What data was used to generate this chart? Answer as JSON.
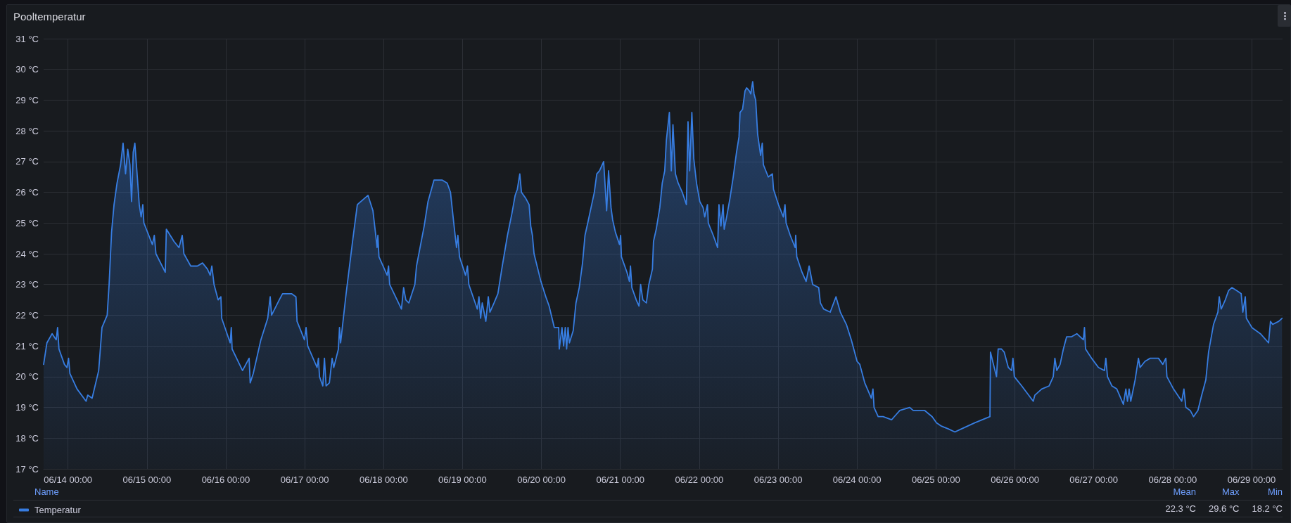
{
  "chart_data": {
    "type": "area",
    "title": "Pooltemperatur",
    "x": [
      "--06-13T16:35",
      "--06-13T17:35",
      "--06-13T19:10",
      "--06-13T20:25",
      "--06-13T20:50",
      "--06-13T21:15",
      "--06-13T22:55",
      "--06-13T23:40",
      "--06-14T00:10",
      "--06-14T00:35",
      "--06-14T02:45",
      "--06-14T05:30",
      "--06-14T06:00",
      "--06-14T07:20",
      "--06-14T09:20",
      "--06-14T10:20",
      "--06-14T11:55",
      "--06-14T12:30",
      "--06-14T13:15",
      "--06-14T14:00",
      "--06-14T14:55",
      "--06-14T16:00",
      "--06-14T16:45",
      "--06-14T17:30",
      "--06-14T18:10",
      "--06-14T18:50",
      "--06-14T19:20",
      "--06-14T19:50",
      "--06-14T20:20",
      "--06-14T21:05",
      "--06-14T21:40",
      "--06-14T22:15",
      "--06-14T22:45",
      "--06-14T23:05",
      "--06-15T01:40",
      "--06-15T02:15",
      "--06-15T02:45",
      "--06-15T05:35",
      "--06-15T05:55",
      "--06-15T08:15",
      "--06-15T09:45",
      "--06-15T10:45",
      "--06-15T11:15",
      "--06-15T13:20",
      "--06-15T15:20",
      "--06-15T16:55",
      "--06-15T18:25",
      "--06-15T19:15",
      "--06-15T19:45",
      "--06-15T20:25",
      "--06-15T21:40",
      "--06-15T22:30",
      "--06-15T22:45",
      "--06-16T01:20",
      "--06-16T01:40",
      "--06-16T01:55",
      "--06-16T05:05",
      "--06-16T07:05",
      "--06-16T07:25",
      "--06-16T08:20",
      "--06-16T10:40",
      "--06-16T12:45",
      "--06-16T13:30",
      "--06-16T13:55",
      "--06-16T16:15",
      "--06-16T17:15",
      "--06-16T20:00",
      "--06-16T21:20",
      "--06-16T21:40",
      "--06-16T23:55",
      "--06-17T00:25",
      "--06-17T00:55",
      "--06-17T03:45",
      "--06-17T04:10",
      "--06-17T04:30",
      "--06-17T05:30",
      "--06-17T06:00",
      "--06-17T06:30",
      "--06-17T07:30",
      "--06-17T08:20",
      "--06-17T08:50",
      "--06-17T10:15",
      "--06-17T10:35",
      "--06-17T10:55",
      "--06-17T12:35",
      "--06-17T14:40",
      "--06-17T16:00",
      "--06-17T19:15",
      "--06-17T20:45",
      "--06-17T21:30",
      "--06-17T22:00",
      "--06-17T22:15",
      "--06-17T22:35",
      "--06-18T01:05",
      "--06-18T01:30",
      "--06-18T01:50",
      "--06-18T05:25",
      "--06-18T06:05",
      "--06-18T06:45",
      "--06-18T07:40",
      "--06-18T09:30",
      "--06-18T10:00",
      "--06-18T12:20",
      "--06-18T13:30",
      "--06-18T15:20",
      "--06-18T17:45",
      "--06-18T19:20",
      "--06-18T20:20",
      "--06-18T21:20",
      "--06-18T22:10",
      "--06-18T22:35",
      "--06-18T23:05",
      "--06-19T00:55",
      "--06-19T01:30",
      "--06-19T01:55",
      "--06-19T04:30",
      "--06-19T05:00",
      "--06-19T05:30",
      "--06-19T06:00",
      "--06-19T07:05",
      "--06-19T07:50",
      "--06-19T08:20",
      "--06-19T09:35",
      "--06-19T10:45",
      "--06-19T12:05",
      "--06-19T13:40",
      "--06-19T15:00",
      "--06-19T16:00",
      "--06-19T16:40",
      "--06-19T17:25",
      "--06-19T17:55",
      "--06-19T19:15",
      "--06-19T20:15",
      "--06-19T20:45",
      "--06-19T21:15",
      "--06-19T21:45",
      "--06-19T23:50",
      "--06-20T01:20",
      "--06-20T02:20",
      "--06-20T03:55",
      "--06-20T05:15",
      "--06-20T05:25",
      "--06-20T06:15",
      "--06-20T06:45",
      "--06-20T07:15",
      "--06-20T07:40",
      "--06-20T08:05",
      "--06-20T08:30",
      "--06-20T09:40",
      "--06-20T10:30",
      "--06-20T11:30",
      "--06-20T12:30",
      "--06-20T13:15",
      "--06-20T14:05",
      "--06-20T15:05",
      "--06-20T16:05",
      "--06-20T16:50",
      "--06-20T17:40",
      "--06-20T18:55",
      "--06-20T19:40",
      "--06-20T19:50",
      "--06-20T20:25",
      "--06-20T21:10",
      "--06-20T21:40",
      "--06-20T22:30",
      "--06-20T23:45",
      "--06-21T00:05",
      "--06-21T00:20",
      "--06-21T02:00",
      "--06-21T02:45",
      "--06-21T03:05",
      "--06-21T03:30",
      "--06-21T04:50",
      "--06-21T05:40",
      "--06-21T06:10",
      "--06-21T06:50",
      "--06-21T07:55",
      "--06-21T08:40",
      "--06-21T09:45",
      "--06-21T10:05",
      "--06-21T10:55",
      "--06-21T12:00",
      "--06-21T12:45",
      "--06-21T13:30",
      "--06-21T14:00",
      "--06-21T14:55",
      "--06-21T15:30",
      "--06-21T16:00",
      "--06-21T16:45",
      "--06-21T17:35",
      "--06-21T18:50",
      "--06-21T20:05",
      "--06-21T20:35",
      "--06-21T21:05",
      "--06-21T21:45",
      "--06-21T22:20",
      "--06-21T23:10",
      "--06-22T00:10",
      "--06-22T01:10",
      "--06-22T01:40",
      "--06-22T02:30",
      "--06-22T02:45",
      "--06-22T04:15",
      "--06-22T05:35",
      "--06-22T06:00",
      "--06-22T06:35",
      "--06-22T07:15",
      "--06-22T07:35",
      "--06-22T08:20",
      "--06-22T09:20",
      "--06-22T10:20",
      "--06-22T11:20",
      "--06-22T12:05",
      "--06-22T12:25",
      "--06-22T13:10",
      "--06-22T13:55",
      "--06-22T14:25",
      "--06-22T15:15",
      "--06-22T15:40",
      "--06-22T16:15",
      "--06-22T16:40",
      "--06-22T17:10",
      "--06-22T17:45",
      "--06-22T18:40",
      "--06-22T19:10",
      "--06-22T19:30",
      "--06-22T21:00",
      "--06-22T22:15",
      "--06-22T22:35",
      "--06-23T00:05",
      "--06-23T01:35",
      "--06-23T02:05",
      "--06-23T02:25",
      "--06-23T03:40",
      "--06-23T05:10",
      "--06-23T05:20",
      "--06-23T05:40",
      "--06-23T07:15",
      "--06-23T08:30",
      "--06-23T09:25",
      "--06-23T10:30",
      "--06-23T12:20",
      "--06-23T12:50",
      "--06-23T13:50",
      "--06-23T15:50",
      "--06-23T17:35",
      "--06-23T18:55",
      "--06-23T20:45",
      "--06-23T22:15",
      "--06-24T00:00",
      "--06-24T00:50",
      "--06-24T02:20",
      "--06-24T04:20",
      "--06-24T04:50",
      "--06-24T05:10",
      "--06-24T06:25",
      "--06-24T07:55",
      "--06-24T10:30",
      "--06-24T13:00",
      "--06-24T16:00",
      "--06-24T17:05",
      "--06-24T20:35",
      "--06-24T22:50",
      "--06-25T00:10",
      "--06-25T01:30",
      "--06-25T03:45",
      "--06-25T05:45",
      "--06-25T07:45",
      "--06-25T11:50",
      "--06-25T16:25",
      "--06-25T16:35",
      "--06-25T17:15",
      "--06-25T18:25",
      "--06-25T18:55",
      "--06-25T19:55",
      "--06-25T20:45",
      "--06-25T22:00",
      "--06-25T23:00",
      "--06-25T23:25",
      "--06-25T23:50",
      "--06-26T02:05",
      "--06-26T05:35",
      "--06-26T06:05",
      "--06-26T08:10",
      "--06-26T10:25",
      "--06-26T11:40",
      "--06-26T12:10",
      "--06-26T12:45",
      "--06-26T13:45",
      "--06-26T14:45",
      "--06-26T15:45",
      "--06-26T17:15",
      "--06-26T18:50",
      "--06-26T20:50",
      "--06-26T21:10",
      "--06-26T21:30",
      "--06-26T23:20",
      "--06-27T01:25",
      "--06-27T03:15",
      "--06-27T03:40",
      "--06-27T04:10",
      "--06-27T05:30",
      "--06-27T07:00",
      "--06-27T09:00",
      "--06-27T09:45",
      "--06-27T10:15",
      "--06-27T10:45",
      "--06-27T11:15",
      "--06-27T12:35",
      "--06-27T13:35",
      "--06-27T14:05",
      "--06-27T15:35",
      "--06-27T17:10",
      "--06-27T19:40",
      "--06-27T21:00",
      "--06-27T21:55",
      "--06-27T22:15",
      "--06-28T00:15",
      "--06-28T02:45",
      "--06-28T03:25",
      "--06-28T04:00",
      "--06-28T05:20",
      "--06-28T06:20",
      "--06-28T07:40",
      "--06-28T08:50",
      "--06-28T10:05",
      "--06-28T10:55",
      "--06-28T12:25",
      "--06-28T13:45",
      "--06-28T14:10",
      "--06-28T14:45",
      "--06-28T16:00",
      "--06-28T17:00",
      "--06-28T18:00",
      "--06-28T19:30",
      "--06-28T20:50",
      "--06-28T21:20",
      "--06-28T22:05",
      "--06-28T22:25",
      "--06-29T00:05",
      "--06-29T02:40",
      "--06-29T05:10",
      "--06-29T05:45",
      "--06-29T06:25",
      "--06-29T08:15",
      "--06-29T09:15"
    ],
    "series": [
      {
        "name": "Temperatur",
        "color": "#377de1",
        "values": [
          20.4,
          21.1,
          21.4,
          21.2,
          21.6,
          20.9,
          20.4,
          20.3,
          20.6,
          20.1,
          19.6,
          19.2,
          19.4,
          19.3,
          20.2,
          21.6,
          22.0,
          23.0,
          24.7,
          25.6,
          26.3,
          26.9,
          27.6,
          26.6,
          27.4,
          26.9,
          25.7,
          27.3,
          27.6,
          26.5,
          25.6,
          25.2,
          25.6,
          25.0,
          24.3,
          24.6,
          24.0,
          23.4,
          24.8,
          24.4,
          24.2,
          24.6,
          24.0,
          23.6,
          23.6,
          23.7,
          23.5,
          23.3,
          23.6,
          23.0,
          22.5,
          22.6,
          21.9,
          21.1,
          21.6,
          20.9,
          20.2,
          20.6,
          19.8,
          20.1,
          21.2,
          21.9,
          22.6,
          22.0,
          22.5,
          22.7,
          22.7,
          22.6,
          21.8,
          21.2,
          21.6,
          21.0,
          20.3,
          20.6,
          20.0,
          19.7,
          20.6,
          19.7,
          19.8,
          20.6,
          20.3,
          20.9,
          21.6,
          21.1,
          22.7,
          24.5,
          25.6,
          25.9,
          25.4,
          24.7,
          24.2,
          24.6,
          23.9,
          23.3,
          23.6,
          23.0,
          22.2,
          22.9,
          22.5,
          22.4,
          23.0,
          23.6,
          24.9,
          25.7,
          26.4,
          26.4,
          26.3,
          26.0,
          25.0,
          24.2,
          24.6,
          23.9,
          23.3,
          23.6,
          23.0,
          22.2,
          22.6,
          21.9,
          22.4,
          21.8,
          22.6,
          22.1,
          22.4,
          22.7,
          23.6,
          24.6,
          25.3,
          25.9,
          26.1,
          26.6,
          26.0,
          25.8,
          25.6,
          24.9,
          24.6,
          24.0,
          23.1,
          22.6,
          22.3,
          21.6,
          21.6,
          20.9,
          21.6,
          21.0,
          21.6,
          20.9,
          21.6,
          21.1,
          21.5,
          22.4,
          22.9,
          23.7,
          24.6,
          25.0,
          25.5,
          26.0,
          26.6,
          26.7,
          27.0,
          25.7,
          25.4,
          26.7,
          25.5,
          25.1,
          24.7,
          24.3,
          24.6,
          23.9,
          23.4,
          23.1,
          23.6,
          22.9,
          22.5,
          22.3,
          23.0,
          22.5,
          22.4,
          23.0,
          23.5,
          24.4,
          24.8,
          25.5,
          26.3,
          26.7,
          27.7,
          28.6,
          26.7,
          28.2,
          26.6,
          26.3,
          26.0,
          25.6,
          28.3,
          26.7,
          28.6,
          27.1,
          26.3,
          25.7,
          25.5,
          25.2,
          25.6,
          25.0,
          24.6,
          24.2,
          25.6,
          24.9,
          25.6,
          24.8,
          25.2,
          25.8,
          26.5,
          27.3,
          27.8,
          28.6,
          28.7,
          29.3,
          29.4,
          29.3,
          29.2,
          29.6,
          29.2,
          29.0,
          27.9,
          27.2,
          27.6,
          26.9,
          26.5,
          26.6,
          26.1,
          25.6,
          25.2,
          25.6,
          25.0,
          24.6,
          24.2,
          24.6,
          23.9,
          23.4,
          23.1,
          23.6,
          23.0,
          22.9,
          22.4,
          22.2,
          22.1,
          22.6,
          22.1,
          21.7,
          21.2,
          20.5,
          20.4,
          19.8,
          19.3,
          19.6,
          19.0,
          18.7,
          18.7,
          18.6,
          18.9,
          19.0,
          18.9,
          18.9,
          18.7,
          18.5,
          18.4,
          18.3,
          18.2,
          18.3,
          18.5,
          18.7,
          20.8,
          20.5,
          20.0,
          20.9,
          20.9,
          20.8,
          20.3,
          20.2,
          20.6,
          20.0,
          19.7,
          19.2,
          19.4,
          19.6,
          19.7,
          20.0,
          20.6,
          20.2,
          20.4,
          20.9,
          21.3,
          21.3,
          21.4,
          21.2,
          21.6,
          20.9,
          20.6,
          20.3,
          20.2,
          20.6,
          20.0,
          19.7,
          19.6,
          19.1,
          19.6,
          19.2,
          19.6,
          19.2,
          19.9,
          20.6,
          20.3,
          20.5,
          20.6,
          20.6,
          20.4,
          20.6,
          20.0,
          19.6,
          19.2,
          19.6,
          19.0,
          18.9,
          18.7,
          18.9,
          19.4,
          19.9,
          20.8,
          21.7,
          22.1,
          22.6,
          22.2,
          22.5,
          22.8,
          22.9,
          22.8,
          22.7,
          22.1,
          22.6,
          21.9,
          21.6,
          21.4,
          21.1,
          21.8,
          21.7,
          21.8,
          21.9
        ]
      }
    ],
    "xlim": [
      "--06-13T16:35",
      "--06-29T09:25"
    ],
    "xticks": [
      {
        "value": "--06-14T00:00",
        "label": "06/14 00:00"
      },
      {
        "value": "--06-15T00:00",
        "label": "06/15 00:00"
      },
      {
        "value": "--06-16T00:00",
        "label": "06/16 00:00"
      },
      {
        "value": "--06-17T00:00",
        "label": "06/17 00:00"
      },
      {
        "value": "--06-18T00:00",
        "label": "06/18 00:00"
      },
      {
        "value": "--06-19T00:00",
        "label": "06/19 00:00"
      },
      {
        "value": "--06-20T00:00",
        "label": "06/20 00:00"
      },
      {
        "value": "--06-21T00:00",
        "label": "06/21 00:00"
      },
      {
        "value": "--06-22T00:00",
        "label": "06/22 00:00"
      },
      {
        "value": "--06-23T00:00",
        "label": "06/23 00:00"
      },
      {
        "value": "--06-24T00:00",
        "label": "06/24 00:00"
      },
      {
        "value": "--06-25T00:00",
        "label": "06/25 00:00"
      },
      {
        "value": "--06-26T00:00",
        "label": "06/26 00:00"
      },
      {
        "value": "--06-27T00:00",
        "label": "06/27 00:00"
      },
      {
        "value": "--06-28T00:00",
        "label": "06/28 00:00"
      },
      {
        "value": "--06-29T00:00",
        "label": "06/29 00:00"
      }
    ],
    "ylim": [
      17,
      31
    ],
    "yticks": [
      {
        "value": 17,
        "label": "17 °C"
      },
      {
        "value": 18,
        "label": "18 °C"
      },
      {
        "value": 19,
        "label": "19 °C"
      },
      {
        "value": 20,
        "label": "20 °C"
      },
      {
        "value": 21,
        "label": "21 °C"
      },
      {
        "value": 22,
        "label": "22 °C"
      },
      {
        "value": 23,
        "label": "23 °C"
      },
      {
        "value": 24,
        "label": "24 °C"
      },
      {
        "value": 25,
        "label": "25 °C"
      },
      {
        "value": 26,
        "label": "26 °C"
      },
      {
        "value": 27,
        "label": "27 °C"
      },
      {
        "value": 28,
        "label": "28 °C"
      },
      {
        "value": 29,
        "label": "29 °C"
      },
      {
        "value": 30,
        "label": "30 °C"
      },
      {
        "value": 31,
        "label": "31 °C"
      }
    ],
    "grid": true,
    "legend": "bottom left",
    "legend_title": "Name",
    "annotations": [
      "Mean",
      "Max",
      "Min",
      "22.3 °C",
      "29.6 °C",
      "18.2 °C"
    ]
  }
}
